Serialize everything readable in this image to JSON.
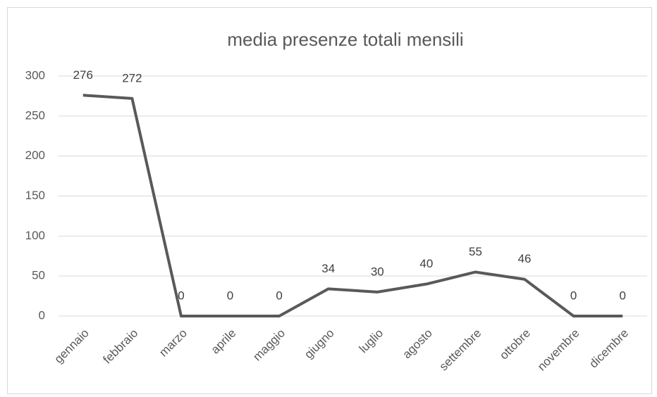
{
  "chart_data": {
    "type": "line",
    "title": "media presenze totali mensili",
    "categories": [
      "gennaio",
      "febbraio",
      "marzo",
      "aprile",
      "maggio",
      "giugno",
      "luglio",
      "agosto",
      "settembre",
      "ottobre",
      "novembre",
      "dicembre"
    ],
    "values": [
      276,
      272,
      0,
      0,
      0,
      34,
      30,
      40,
      55,
      46,
      0,
      0
    ],
    "color": "#595959",
    "ylim": [
      0,
      300
    ],
    "yticks": [
      0,
      50,
      100,
      150,
      200,
      250,
      300
    ],
    "grid": true,
    "data_labels": true
  }
}
